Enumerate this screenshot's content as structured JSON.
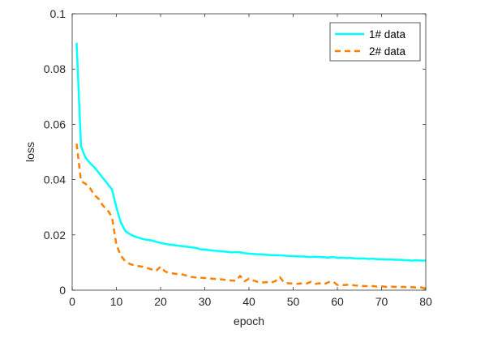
{
  "chart_data": {
    "type": "line",
    "title": "",
    "xlabel": "epoch",
    "ylabel": "loss",
    "xlim": [
      0,
      80
    ],
    "ylim": [
      0,
      0.1
    ],
    "x_ticks": [
      0,
      10,
      20,
      30,
      40,
      50,
      60,
      70,
      80
    ],
    "y_ticks": [
      0,
      0.02,
      0.04,
      0.06,
      0.08,
      0.1
    ],
    "x_tick_labels": [
      "0",
      "10",
      "20",
      "30",
      "40",
      "50",
      "60",
      "70",
      "80"
    ],
    "y_tick_labels": [
      "0",
      "0.02",
      "0.04",
      "0.06",
      "0.08",
      "0.1"
    ],
    "grid": false,
    "legend_position": "top-right",
    "series": [
      {
        "name": "1# data",
        "color": "#00FFFF",
        "style": "solid",
        "x": [
          1,
          2,
          3,
          4,
          5,
          6,
          7,
          8,
          9,
          10,
          11,
          12,
          13,
          14,
          15,
          16,
          17,
          18,
          19,
          20,
          21,
          22,
          23,
          24,
          25,
          26,
          27,
          28,
          29,
          30,
          31,
          32,
          33,
          34,
          35,
          36,
          37,
          38,
          39,
          40,
          41,
          42,
          43,
          44,
          45,
          46,
          47,
          48,
          49,
          50,
          51,
          52,
          53,
          54,
          55,
          56,
          57,
          58,
          59,
          60,
          61,
          62,
          63,
          64,
          65,
          66,
          67,
          68,
          69,
          70,
          71,
          72,
          73,
          74,
          75,
          76,
          77,
          78,
          79,
          80
        ],
        "values": [
          0.0895,
          0.052,
          0.048,
          0.046,
          0.0445,
          0.0425,
          0.0405,
          0.0385,
          0.0365,
          0.03,
          0.0245,
          0.0215,
          0.0203,
          0.0195,
          0.019,
          0.0185,
          0.0182,
          0.018,
          0.0175,
          0.0171,
          0.0168,
          0.0165,
          0.0163,
          0.0161,
          0.0159,
          0.0157,
          0.0155,
          0.0153,
          0.0148,
          0.0147,
          0.0145,
          0.0143,
          0.0142,
          0.014,
          0.0139,
          0.0137,
          0.0138,
          0.0137,
          0.0134,
          0.0132,
          0.0131,
          0.013,
          0.0129,
          0.0128,
          0.0127,
          0.0127,
          0.0126,
          0.0125,
          0.0124,
          0.0123,
          0.0122,
          0.0122,
          0.0121,
          0.012,
          0.0121,
          0.012,
          0.0119,
          0.0118,
          0.012,
          0.0117,
          0.0118,
          0.0116,
          0.0117,
          0.0115,
          0.0114,
          0.0115,
          0.0113,
          0.0114,
          0.0112,
          0.0112,
          0.0111,
          0.0111,
          0.011,
          0.011,
          0.0109,
          0.0108,
          0.0107,
          0.0108,
          0.0107,
          0.0107
        ]
      },
      {
        "name": "2# data",
        "color": "#FF8000",
        "style": "dashed",
        "x": [
          1,
          2,
          3,
          4,
          5,
          6,
          7,
          8,
          9,
          10,
          11,
          12,
          13,
          14,
          15,
          16,
          17,
          18,
          19,
          20,
          21,
          22,
          23,
          24,
          25,
          26,
          27,
          28,
          29,
          30,
          31,
          32,
          33,
          34,
          35,
          36,
          37,
          38,
          39,
          40,
          41,
          42,
          43,
          44,
          45,
          46,
          47,
          48,
          49,
          50,
          51,
          52,
          53,
          54,
          55,
          56,
          57,
          58,
          59,
          60,
          61,
          62,
          63,
          64,
          65,
          66,
          67,
          68,
          69,
          70,
          71,
          72,
          73,
          74,
          75,
          76,
          77,
          78,
          79,
          80
        ],
        "values": [
          0.053,
          0.0395,
          0.0385,
          0.037,
          0.0345,
          0.033,
          0.0305,
          0.029,
          0.0265,
          0.0165,
          0.0125,
          0.0105,
          0.0095,
          0.009,
          0.0087,
          0.0085,
          0.008,
          0.0075,
          0.007,
          0.0085,
          0.0068,
          0.0062,
          0.006,
          0.0058,
          0.0057,
          0.0052,
          0.0048,
          0.0046,
          0.0045,
          0.0044,
          0.0043,
          0.0041,
          0.004,
          0.0039,
          0.0036,
          0.0035,
          0.0034,
          0.0052,
          0.0032,
          0.0042,
          0.0035,
          0.003,
          0.0028,
          0.0029,
          0.0027,
          0.0033,
          0.0047,
          0.0026,
          0.0025,
          0.0024,
          0.0023,
          0.0025,
          0.0024,
          0.003,
          0.0023,
          0.0025,
          0.0022,
          0.0029,
          0.0031,
          0.0019,
          0.0018,
          0.0019,
          0.002,
          0.0017,
          0.0016,
          0.0015,
          0.0014,
          0.0015,
          0.0013,
          0.0014,
          0.0012,
          0.0013,
          0.0012,
          0.0011,
          0.0012,
          0.001,
          0.0011,
          0.0009,
          0.001,
          0.0005
        ]
      }
    ]
  }
}
